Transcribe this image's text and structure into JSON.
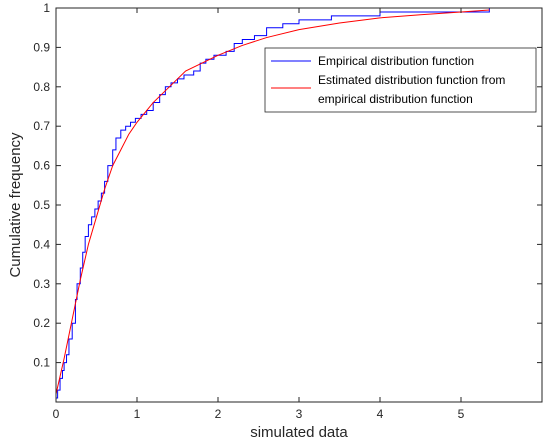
{
  "chart_data": {
    "type": "line",
    "title": "",
    "xlabel": "simulated data",
    "ylabel": "Cumulative frequency",
    "xlim": [
      0,
      6
    ],
    "ylim": [
      0,
      1
    ],
    "x_ticks": [
      "0",
      "1",
      "2",
      "3",
      "4",
      "5"
    ],
    "y_ticks": [
      "0.1",
      "0.2",
      "0.3",
      "0.4",
      "0.5",
      "0.6",
      "0.7",
      "0.8",
      "0.9",
      "1"
    ],
    "grid": false,
    "legend_position": "top-right",
    "series": [
      {
        "name": "Empirical distribution function",
        "color": "#0000ff",
        "style": "step",
        "x": [
          0.0,
          0.02,
          0.05,
          0.08,
          0.1,
          0.13,
          0.16,
          0.2,
          0.24,
          0.26,
          0.3,
          0.33,
          0.36,
          0.4,
          0.44,
          0.48,
          0.52,
          0.56,
          0.6,
          0.64,
          0.7,
          0.74,
          0.8,
          0.86,
          0.92,
          0.98,
          1.05,
          1.12,
          1.2,
          1.28,
          1.35,
          1.42,
          1.5,
          1.58,
          1.7,
          1.78,
          1.85,
          1.95,
          2.1,
          2.2,
          2.3,
          2.45,
          2.6,
          2.8,
          3.0,
          3.2,
          3.4,
          3.6,
          4.0,
          5.35
        ],
        "values": [
          0.01,
          0.03,
          0.06,
          0.08,
          0.1,
          0.12,
          0.16,
          0.2,
          0.26,
          0.3,
          0.34,
          0.38,
          0.42,
          0.45,
          0.47,
          0.49,
          0.51,
          0.53,
          0.56,
          0.6,
          0.64,
          0.67,
          0.69,
          0.7,
          0.71,
          0.72,
          0.73,
          0.74,
          0.76,
          0.78,
          0.8,
          0.81,
          0.82,
          0.83,
          0.84,
          0.86,
          0.87,
          0.88,
          0.89,
          0.91,
          0.92,
          0.93,
          0.95,
          0.96,
          0.97,
          0.97,
          0.98,
          0.98,
          0.99,
          1.0
        ]
      },
      {
        "name": "Estimated distribution function from empirical distribution function",
        "color": "#ff0000",
        "style": "smooth",
        "x": [
          0.0,
          0.1,
          0.2,
          0.3,
          0.4,
          0.5,
          0.6,
          0.7,
          0.8,
          0.9,
          1.0,
          1.2,
          1.4,
          1.6,
          1.8,
          2.0,
          2.3,
          2.6,
          3.0,
          3.5,
          4.0,
          4.5,
          5.0,
          5.35
        ],
        "values": [
          0.02,
          0.11,
          0.21,
          0.31,
          0.4,
          0.47,
          0.54,
          0.6,
          0.64,
          0.68,
          0.71,
          0.76,
          0.8,
          0.84,
          0.86,
          0.88,
          0.905,
          0.925,
          0.945,
          0.962,
          0.975,
          0.983,
          0.99,
          0.995
        ]
      }
    ],
    "legend": [
      "Empirical distribution function",
      "Estimated distribution function from",
      "empirical distribution function"
    ]
  }
}
